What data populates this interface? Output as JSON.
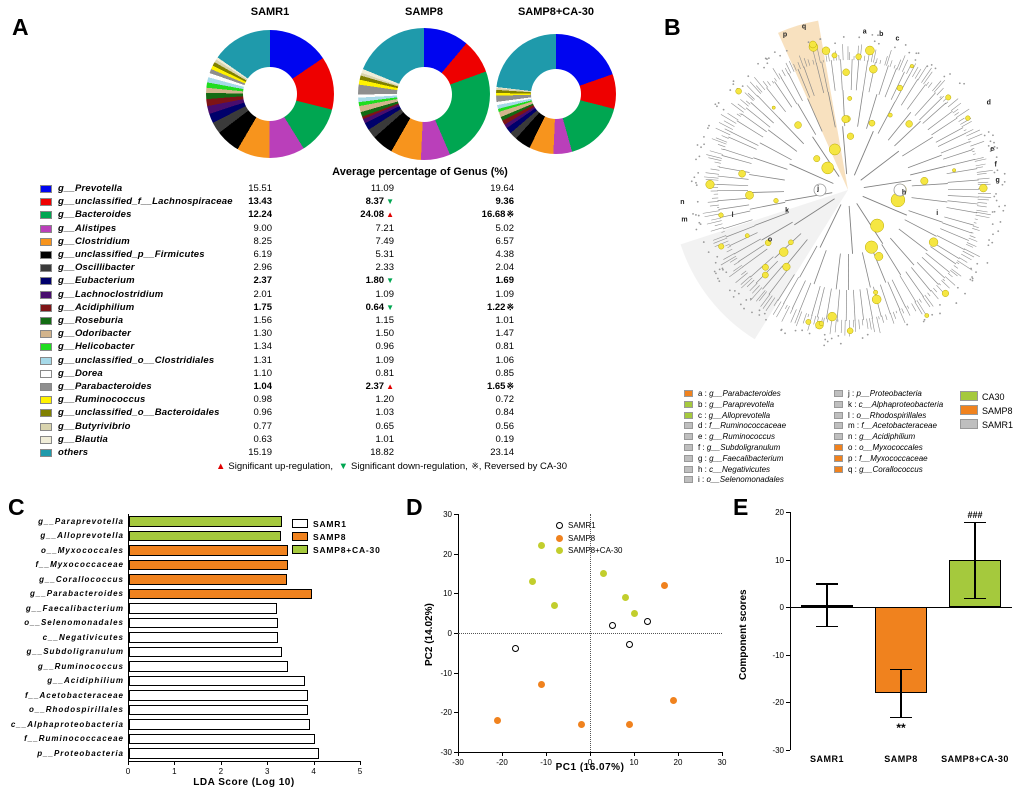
{
  "panels": {
    "a": {
      "label": "A",
      "footnote": {
        "up": "▲",
        "up_text": "Significant up-regulation,",
        "down": "▼",
        "down_text": "Significant down-regulation,",
        "rev": "※,",
        "rev_text": "Reversed by CA-30"
      }
    },
    "b": {
      "label": "B",
      "legend_items": [
        {
          "key": "a",
          "name": "g__Parabacteroides",
          "color": "#F0821E"
        },
        {
          "key": "b",
          "name": "g__Paraprevotella",
          "color": "#A5C93D"
        },
        {
          "key": "c",
          "name": "g__Alloprevotella",
          "color": "#A5C93D"
        },
        {
          "key": "d",
          "name": "f__Ruminococcaceae",
          "color": "#BFBFBF"
        },
        {
          "key": "e",
          "name": "g__Ruminococcus",
          "color": "#BFBFBF"
        },
        {
          "key": "f",
          "name": "g__Subdoligranulum",
          "color": "#BFBFBF"
        },
        {
          "key": "g",
          "name": "g__Faecalibacterium",
          "color": "#BFBFBF"
        },
        {
          "key": "h",
          "name": "c__Negativicutes",
          "color": "#BFBFBF"
        },
        {
          "key": "i",
          "name": "o__Selenomonadales",
          "color": "#BFBFBF"
        },
        {
          "key": "j",
          "name": "p__Proteobacteria",
          "color": "#BFBFBF"
        },
        {
          "key": "k",
          "name": "c__Alphaproteobacteria",
          "color": "#BFBFBF"
        },
        {
          "key": "l",
          "name": "o__Rhodospirillales",
          "color": "#BFBFBF"
        },
        {
          "key": "m",
          "name": "f__Acetobacteraceae",
          "color": "#BFBFBF"
        },
        {
          "key": "n",
          "name": "g__Acidiphilium",
          "color": "#BFBFBF"
        },
        {
          "key": "o",
          "name": "o__Myxococcales",
          "color": "#F0821E"
        },
        {
          "key": "p",
          "name": "f__Myxococcaceae",
          "color": "#F0821E"
        },
        {
          "key": "q",
          "name": "g__Corallococcus",
          "color": "#F0821E"
        }
      ],
      "group_legend": [
        {
          "label": "CA30",
          "color": "#A5C93D"
        },
        {
          "label": "SAMP8",
          "color": "#F0821E"
        },
        {
          "label": "SAMR1",
          "color": "#BFBFBF"
        }
      ]
    },
    "c": {
      "label": "C"
    },
    "d": {
      "label": "D"
    },
    "e": {
      "label": "E"
    }
  },
  "chart_data": [
    {
      "id": "genus-donuts",
      "type": "pie",
      "title": "Average percentage of Genus (%)",
      "groups": [
        "SAMR1",
        "SAMP8",
        "SAMP8+CA-30"
      ],
      "rows": [
        {
          "name": "g__Prevotella",
          "color": "#0005F0",
          "values": [
            "15.51",
            "11.09",
            "19.64"
          ],
          "markers": [
            "",
            "",
            ""
          ],
          "bold": false
        },
        {
          "name": "g__unclassified_f__Lachnospiraceae",
          "color": "#EE0000",
          "values": [
            "13.43",
            "8.37",
            "9.36"
          ],
          "markers": [
            "",
            "down",
            ""
          ],
          "bold": true
        },
        {
          "name": "g__Bacteroides",
          "color": "#00A651",
          "values": [
            "12.24",
            "24.08",
            "16.68"
          ],
          "markers": [
            "",
            "up",
            "rev"
          ],
          "bold": true
        },
        {
          "name": "g__Alistipes",
          "color": "#BA3FBA",
          "values": [
            "9.00",
            "7.21",
            "5.02"
          ],
          "markers": [
            "",
            "",
            ""
          ],
          "bold": false
        },
        {
          "name": "g__Clostridium",
          "color": "#F7941D",
          "values": [
            "8.25",
            "7.49",
            "6.57"
          ],
          "markers": [
            "",
            "",
            ""
          ],
          "bold": false
        },
        {
          "name": "g__unclassified_p__Firmicutes",
          "color": "#000000",
          "values": [
            "6.19",
            "5.31",
            "4.38"
          ],
          "markers": [
            "",
            "",
            ""
          ],
          "bold": false
        },
        {
          "name": "g__Oscillibacter",
          "color": "#3A3A3A",
          "values": [
            "2.96",
            "2.33",
            "2.04"
          ],
          "markers": [
            "",
            "",
            ""
          ],
          "bold": false
        },
        {
          "name": "g__Eubacterium",
          "color": "#00006B",
          "values": [
            "2.37",
            "1.80",
            "1.69"
          ],
          "markers": [
            "",
            "down",
            ""
          ],
          "bold": true
        },
        {
          "name": "g__Lachnoclostridium",
          "color": "#480D6D",
          "values": [
            "2.01",
            "1.09",
            "1.09"
          ],
          "markers": [
            "",
            "",
            ""
          ],
          "bold": false
        },
        {
          "name": "g__Acidiphilium",
          "color": "#7E1416",
          "values": [
            "1.75",
            "0.64",
            "1.22"
          ],
          "markers": [
            "",
            "down",
            "rev"
          ],
          "bold": true
        },
        {
          "name": "g__Roseburia",
          "color": "#136B13",
          "values": [
            "1.56",
            "1.15",
            "1.01"
          ],
          "markers": [
            "",
            "",
            ""
          ],
          "bold": false
        },
        {
          "name": "g__Odoribacter",
          "color": "#D2B48C",
          "values": [
            "1.30",
            "1.50",
            "1.47"
          ],
          "markers": [
            "",
            "",
            ""
          ],
          "bold": false
        },
        {
          "name": "g__Helicobacter",
          "color": "#1FDD1F",
          "values": [
            "1.34",
            "0.96",
            "0.81"
          ],
          "markers": [
            "",
            "",
            ""
          ],
          "bold": false
        },
        {
          "name": "g__unclassified_o__Clostridiales",
          "color": "#A6D9E8",
          "values": [
            "1.31",
            "1.09",
            "1.06"
          ],
          "markers": [
            "",
            "",
            ""
          ],
          "bold": false
        },
        {
          "name": "g__Dorea",
          "color": "#FDFDFD",
          "values": [
            "1.10",
            "0.81",
            "0.85"
          ],
          "markers": [
            "",
            "",
            ""
          ],
          "bold": false
        },
        {
          "name": "g__Parabacteroides",
          "color": "#8E8E8E",
          "values": [
            "1.04",
            "2.37",
            "1.65"
          ],
          "markers": [
            "",
            "up",
            "rev"
          ],
          "bold": true
        },
        {
          "name": "g__Ruminococcus",
          "color": "#FFF200",
          "values": [
            "0.98",
            "1.20",
            "0.72"
          ],
          "markers": [
            "",
            "",
            ""
          ],
          "bold": false
        },
        {
          "name": "g__unclassified_o__Bacteroidales",
          "color": "#808000",
          "values": [
            "0.96",
            "1.03",
            "0.84"
          ],
          "markers": [
            "",
            "",
            ""
          ],
          "bold": false
        },
        {
          "name": "g__Butyrivibrio",
          "color": "#D9D4AE",
          "values": [
            "0.77",
            "0.65",
            "0.56"
          ],
          "markers": [
            "",
            "",
            ""
          ],
          "bold": false
        },
        {
          "name": "g__Blautia",
          "color": "#F0EDD8",
          "values": [
            "0.63",
            "1.01",
            "0.19"
          ],
          "markers": [
            "",
            "",
            ""
          ],
          "bold": false
        },
        {
          "name": "others",
          "color": "#1F9AAB",
          "values": [
            "15.19",
            "18.82",
            "23.14"
          ],
          "markers": [
            "",
            "",
            ""
          ],
          "bold": false
        }
      ]
    },
    {
      "id": "lda-scores",
      "type": "bar",
      "orientation": "horizontal",
      "xlabel": "LDA Score (Log 10)",
      "xlim": [
        0,
        5
      ],
      "xticks": [
        0,
        1,
        2,
        3,
        4,
        5
      ],
      "legend": [
        {
          "label": "SAMR1",
          "color": "#FFFFFF"
        },
        {
          "label": "SAMP8",
          "color": "#F0821E"
        },
        {
          "label": "SAMP8+CA-30",
          "color": "#A5C93D"
        }
      ],
      "bars": [
        {
          "category": "g__Paraprevotella",
          "group": "SAMP8+CA-30",
          "value": 3.3
        },
        {
          "category": "g__Alloprevotella",
          "group": "SAMP8+CA-30",
          "value": 3.28
        },
        {
          "category": "o__Myxococcales",
          "group": "SAMP8",
          "value": 3.42
        },
        {
          "category": "f__Myxococcaceae",
          "group": "SAMP8",
          "value": 3.42
        },
        {
          "category": "g__Corallococcus",
          "group": "SAMP8",
          "value": 3.4
        },
        {
          "category": "g__Parabacteroides",
          "group": "SAMP8",
          "value": 3.95
        },
        {
          "category": "g__Faecalibacterium",
          "group": "SAMR1",
          "value": 3.18
        },
        {
          "category": "o__Selenomonadales",
          "group": "SAMR1",
          "value": 3.22
        },
        {
          "category": "c__Negativicutes",
          "group": "SAMR1",
          "value": 3.22
        },
        {
          "category": "g__Subdoligranulum",
          "group": "SAMR1",
          "value": 3.3
        },
        {
          "category": "g__Ruminococcus",
          "group": "SAMR1",
          "value": 3.42
        },
        {
          "category": "g__Acidiphilium",
          "group": "SAMR1",
          "value": 3.8
        },
        {
          "category": "f__Acetobacteraceae",
          "group": "SAMR1",
          "value": 3.85
        },
        {
          "category": "o__Rhodospirillales",
          "group": "SAMR1",
          "value": 3.85
        },
        {
          "category": "c__Alphaproteobacteria",
          "group": "SAMR1",
          "value": 3.9
        },
        {
          "category": "f__Ruminococcaceae",
          "group": "SAMR1",
          "value": 4.0
        },
        {
          "category": "p__Proteobacteria",
          "group": "SAMR1",
          "value": 4.1
        }
      ]
    },
    {
      "id": "pca",
      "type": "scatter",
      "xlabel": "PC1 (16.07%)",
      "ylabel": "PC2 (14.02%)",
      "xlim": [
        -30,
        30
      ],
      "ylim": [
        -30,
        30
      ],
      "xticks": [
        -30,
        -20,
        -10,
        0,
        10,
        20,
        30
      ],
      "yticks": [
        -30,
        -20,
        -10,
        0,
        10,
        20,
        30
      ],
      "series": [
        {
          "name": "SAMR1",
          "style": "open",
          "color": "#000000",
          "points": [
            [
              -17,
              -4
            ],
            [
              5,
              2
            ],
            [
              9,
              -3
            ],
            [
              13,
              3
            ]
          ]
        },
        {
          "name": "SAMP8",
          "style": "filled",
          "color": "#F0821E",
          "points": [
            [
              -21,
              -22
            ],
            [
              -11,
              -13
            ],
            [
              -2,
              -23
            ],
            [
              9,
              -23
            ],
            [
              19,
              -17
            ],
            [
              17,
              12
            ]
          ]
        },
        {
          "name": "SAMP8+CA-30",
          "style": "filled",
          "color": "#C2CE2D",
          "points": [
            [
              -11,
              22
            ],
            [
              -13,
              13
            ],
            [
              -8,
              7
            ],
            [
              3,
              15
            ],
            [
              8,
              9
            ],
            [
              10,
              5
            ]
          ]
        }
      ]
    },
    {
      "id": "component-scores",
      "type": "bar",
      "ylabel": "Component scores",
      "ylim": [
        -30,
        20
      ],
      "yticks": [
        -30,
        -20,
        -10,
        0,
        10,
        20
      ],
      "bars": [
        {
          "category": "SAMR1",
          "value": 0.5,
          "error": 4.5,
          "color": "#FFFFFF",
          "annotation": "",
          "annotation_pos": ""
        },
        {
          "category": "SAMP8",
          "value": -18,
          "error": 5,
          "color": "#F0821E",
          "annotation": "**",
          "annotation_pos": "below"
        },
        {
          "category": "SAMP8+CA-30",
          "value": 10,
          "error": 8,
          "color": "#A5C93D",
          "annotation": "###",
          "annotation_pos": "above"
        }
      ]
    }
  ]
}
